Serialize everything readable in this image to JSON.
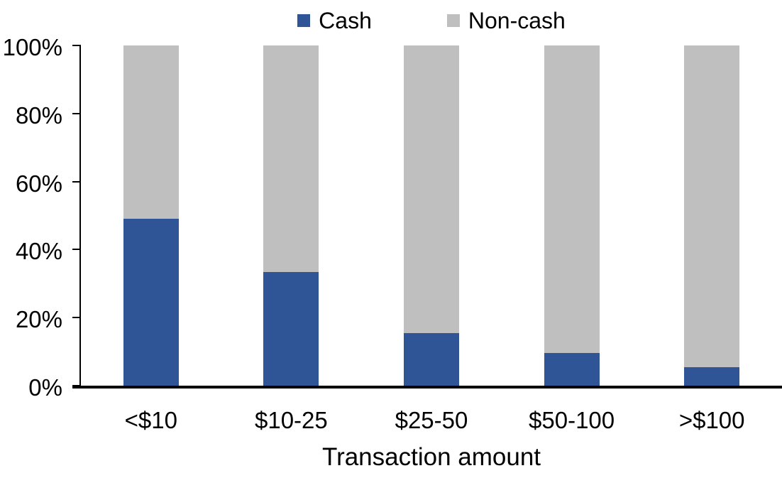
{
  "colors": {
    "cash": "#2F5597",
    "noncash": "#BFBFBF",
    "axis": "#000000",
    "background": "#FFFFFF"
  },
  "chart_data": {
    "type": "bar",
    "stacked": true,
    "orientation": "vertical",
    "categories": [
      "<$10",
      "$10-25",
      "$25-50",
      "$50-100",
      ">$100"
    ],
    "series": [
      {
        "name": "Cash",
        "color": "#2F5597",
        "values": [
          49,
          33.5,
          15.5,
          9.5,
          5.5
        ]
      },
      {
        "name": "Non-cash",
        "color": "#BFBFBF",
        "values": [
          51,
          66.5,
          84.5,
          90.5,
          94.5
        ]
      }
    ],
    "title": "",
    "xlabel": "Transaction amount",
    "ylabel": "",
    "ylim": [
      0,
      100
    ],
    "y_ticks": [
      "100%",
      "80%",
      "60%",
      "40%",
      "20%",
      "0%"
    ],
    "y_tick_values": [
      100,
      80,
      60,
      40,
      20,
      0
    ],
    "grid": false,
    "legend_position": "top"
  }
}
